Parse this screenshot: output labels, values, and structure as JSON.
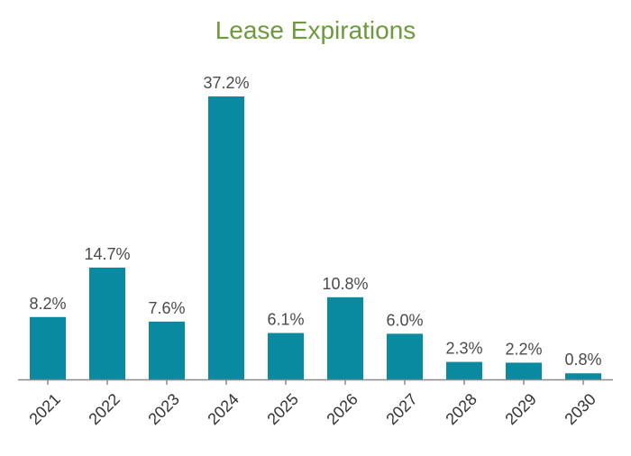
{
  "chart_data": {
    "type": "bar",
    "title": "Lease Expirations",
    "categories": [
      "2021",
      "2022",
      "2023",
      "2024",
      "2025",
      "2026",
      "2027",
      "2028",
      "2029",
      "2030"
    ],
    "values": [
      8.2,
      14.7,
      7.6,
      37.2,
      6.1,
      10.8,
      6.0,
      2.3,
      2.2,
      0.8
    ],
    "data_labels": [
      "8.2%",
      "14.7%",
      "7.6%",
      "37.2%",
      "6.1%",
      "10.8%",
      "6.0%",
      "2.3%",
      "2.2%",
      "0.8%"
    ],
    "xlabel": "",
    "ylabel": "",
    "ylim": [
      0,
      37.2
    ],
    "grid": false,
    "legend": "none",
    "colors": {
      "bar": "#0a8aa1",
      "title": "#6d9a3d",
      "axis": "#8a8a8a",
      "label": "#4a4a4a",
      "tick": "#333333"
    }
  }
}
